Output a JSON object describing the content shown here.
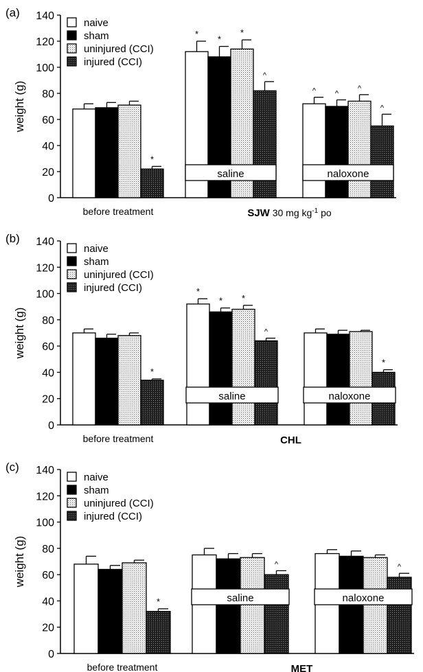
{
  "chart_data": [
    {
      "type": "bar",
      "panel_label": "(a)",
      "ylabel": "weight (g)",
      "ylim": [
        0,
        140
      ],
      "yticks": [
        0,
        20,
        40,
        60,
        80,
        100,
        120,
        140
      ],
      "series": [
        {
          "name": "naive",
          "values": [
            68,
            112,
            72
          ],
          "errors": [
            4,
            8,
            5
          ],
          "marks": [
            "",
            "*",
            "^"
          ]
        },
        {
          "name": "sham",
          "values": [
            69,
            108,
            70
          ],
          "errors": [
            4,
            8,
            5
          ],
          "marks": [
            "",
            "*",
            "^"
          ]
        },
        {
          "name": "uninjured (CCI)",
          "values": [
            71,
            114,
            74
          ],
          "errors": [
            3,
            7,
            5
          ],
          "marks": [
            "",
            "*",
            "^"
          ]
        },
        {
          "name": "injured (CCI)",
          "values": [
            22,
            82,
            55
          ],
          "errors": [
            2,
            7,
            9
          ],
          "marks": [
            "*",
            "^",
            "^"
          ]
        }
      ],
      "groups": [
        {
          "label": "before treatment",
          "box": ""
        },
        {
          "label": "",
          "box": "saline"
        },
        {
          "label": "",
          "box": "naloxone"
        }
      ],
      "treatment": {
        "bold": "SJW",
        "rest": "30 mg kg",
        "sup": "-1",
        "tail": "po"
      }
    },
    {
      "type": "bar",
      "panel_label": "(b)",
      "ylabel": "weight (g)",
      "ylim": [
        0,
        140
      ],
      "yticks": [
        0,
        20,
        40,
        60,
        80,
        100,
        120,
        140
      ],
      "series": [
        {
          "name": "naive",
          "values": [
            70,
            92,
            70
          ],
          "errors": [
            3,
            4,
            3
          ],
          "marks": [
            "",
            "*",
            ""
          ]
        },
        {
          "name": "sham",
          "values": [
            66,
            86,
            69
          ],
          "errors": [
            3,
            3,
            3
          ],
          "marks": [
            "",
            "*",
            ""
          ]
        },
        {
          "name": "uninjured (CCI)",
          "values": [
            68,
            88,
            71
          ],
          "errors": [
            2,
            3,
            1
          ],
          "marks": [
            "",
            "*",
            ""
          ]
        },
        {
          "name": "injured (CCI)",
          "values": [
            34,
            64,
            40
          ],
          "errors": [
            1,
            2,
            2
          ],
          "marks": [
            "*",
            "^",
            "*"
          ]
        }
      ],
      "groups": [
        {
          "label": "before treatment",
          "box": ""
        },
        {
          "label": "",
          "box": "saline"
        },
        {
          "label": "",
          "box": "naloxone"
        }
      ],
      "treatment": {
        "bold": "CHL",
        "rest": "",
        "sup": "",
        "tail": ""
      }
    },
    {
      "type": "bar",
      "panel_label": "(c)",
      "ylabel": "weight (g)",
      "ylim": [
        0,
        140
      ],
      "yticks": [
        0,
        20,
        40,
        60,
        80,
        100,
        120,
        140
      ],
      "series": [
        {
          "name": "naive",
          "values": [
            68,
            75,
            76
          ],
          "errors": [
            6,
            5,
            3
          ],
          "marks": [
            "",
            "",
            ""
          ]
        },
        {
          "name": "sham",
          "values": [
            64,
            72,
            74
          ],
          "errors": [
            3,
            4,
            4
          ],
          "marks": [
            "",
            "",
            ""
          ]
        },
        {
          "name": "uninjured (CCI)",
          "values": [
            69,
            73,
            73
          ],
          "errors": [
            2,
            3,
            2
          ],
          "marks": [
            "",
            "",
            ""
          ]
        },
        {
          "name": "injured (CCI)",
          "values": [
            32,
            60,
            58
          ],
          "errors": [
            2,
            3,
            3
          ],
          "marks": [
            "*",
            "^",
            "^"
          ]
        }
      ],
      "groups": [
        {
          "label": "before treatment",
          "box": ""
        },
        {
          "label": "",
          "box": "saline"
        },
        {
          "label": "",
          "box": "naloxone"
        }
      ],
      "treatment": {
        "bold": "MET",
        "rest": "",
        "sup": "",
        "tail": ""
      }
    }
  ],
  "colors": {
    "naive": "#ffffff",
    "sham": "#000000",
    "uninjured (CCI)": "#e6e6e6",
    "injured (CCI)": "#2a2a2a"
  }
}
